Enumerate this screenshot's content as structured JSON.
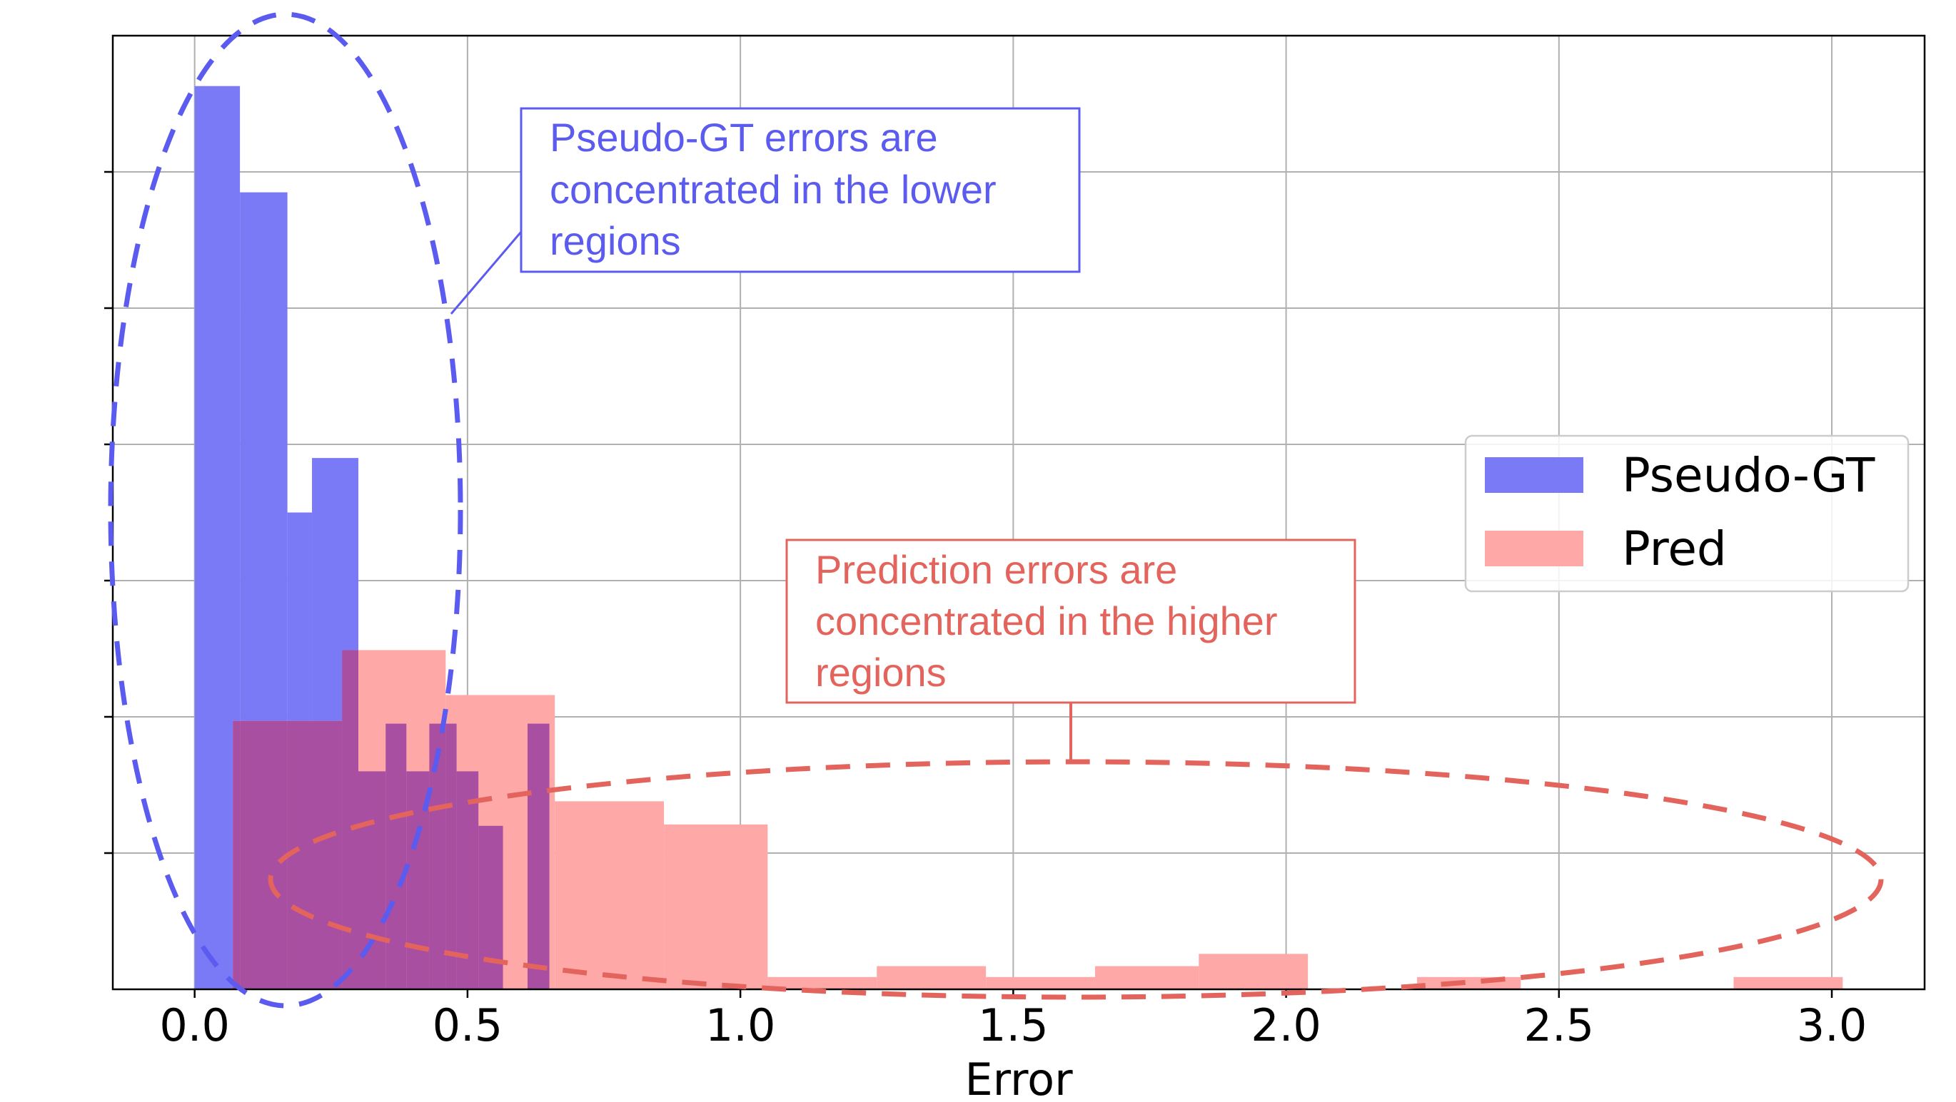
{
  "chart_data": {
    "type": "histogram",
    "title": "",
    "xlabel": "Error",
    "ylabel": "",
    "xlim": [
      -0.15,
      3.17
    ],
    "ylim": [
      0,
      7
    ],
    "ylim_note": "",
    "xticks": [
      "0.0",
      "0.5",
      "1.0",
      "1.5",
      "2.0",
      "2.5",
      "3.0"
    ],
    "xtick_values": [
      0.0,
      0.5,
      1.0,
      1.5,
      2.0,
      2.5,
      3.0
    ],
    "ytick_values": [
      1,
      2,
      3,
      4,
      5,
      6
    ],
    "yticks_labeled": false,
    "grid": true,
    "legend_position": "right",
    "colors": {
      "pseudo_gt": "#7a7af7",
      "pred": "#ffa8a8",
      "overlap": "#a84fa2",
      "anno_blue": "#5b5bf0",
      "anno_red": "#e2645c"
    },
    "series": [
      {
        "name": "Pseudo-GT",
        "key": "pseudo_gt",
        "bins": [
          {
            "x0": 0.0,
            "x1": 0.083,
            "count": 6.63
          },
          {
            "x0": 0.083,
            "x1": 0.17,
            "count": 5.85
          },
          {
            "x0": 0.17,
            "x1": 0.215,
            "count": 3.5
          },
          {
            "x0": 0.215,
            "x1": 0.3,
            "count": 3.9
          },
          {
            "x0": 0.3,
            "x1": 0.35,
            "count": 1.6
          },
          {
            "x0": 0.35,
            "x1": 0.388,
            "count": 1.95
          },
          {
            "x0": 0.388,
            "x1": 0.43,
            "count": 1.6
          },
          {
            "x0": 0.43,
            "x1": 0.48,
            "count": 1.95
          },
          {
            "x0": 0.48,
            "x1": 0.52,
            "count": 1.6
          },
          {
            "x0": 0.52,
            "x1": 0.565,
            "count": 1.2
          },
          {
            "x0": 0.565,
            "x1": 0.61,
            "count": 0.0
          },
          {
            "x0": 0.61,
            "x1": 0.65,
            "count": 1.95
          }
        ]
      },
      {
        "name": "Pred",
        "key": "pred",
        "bins": [
          {
            "x0": 0.07,
            "x1": 0.27,
            "count": 1.97
          },
          {
            "x0": 0.27,
            "x1": 0.46,
            "count": 2.49
          },
          {
            "x0": 0.46,
            "x1": 0.66,
            "count": 2.16
          },
          {
            "x0": 0.66,
            "x1": 0.86,
            "count": 1.38
          },
          {
            "x0": 0.86,
            "x1": 1.05,
            "count": 1.21
          },
          {
            "x0": 1.05,
            "x1": 1.25,
            "count": 0.09
          },
          {
            "x0": 1.25,
            "x1": 1.45,
            "count": 0.17
          },
          {
            "x0": 1.45,
            "x1": 1.65,
            "count": 0.09
          },
          {
            "x0": 1.65,
            "x1": 1.84,
            "count": 0.17
          },
          {
            "x0": 1.84,
            "x1": 2.04,
            "count": 0.26
          },
          {
            "x0": 2.24,
            "x1": 2.43,
            "count": 0.09
          },
          {
            "x0": 2.82,
            "x1": 3.02,
            "count": 0.09
          }
        ]
      }
    ],
    "annotations": [
      {
        "key": "blue",
        "lines": [
          "Pseudo-GT errors are",
          "concentrated in the lower",
          "regions"
        ]
      },
      {
        "key": "red",
        "lines": [
          "Prediction errors are",
          "concentrated in the higher",
          "regions"
        ]
      }
    ]
  }
}
